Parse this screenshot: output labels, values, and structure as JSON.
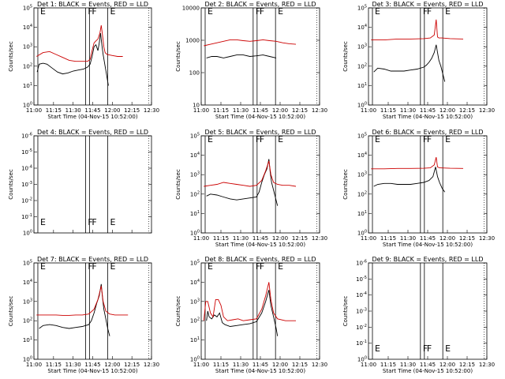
{
  "page": {
    "background": "#ffffff",
    "event_color": "#000000",
    "lld_color": "#cc0000"
  },
  "chart_data": [
    {
      "type": "line",
      "title": "Det 1: BLACK = Events, RED = LLD",
      "xlabel": "Start Time (04-Nov-15 10:52:00)",
      "ylabel": "Counts/sec",
      "x_tick_labels": [
        "11:00",
        "11:15",
        "11:30",
        "11:45",
        "12:00",
        "12:15",
        "12:30"
      ],
      "xlim_min_after_start": [
        8,
        98
      ],
      "y_scale": "log",
      "y_tick_labels": [
        "10^0",
        "10^1",
        "10^2",
        "10^3",
        "10^4",
        "10^5"
      ],
      "ylim_log10": [
        0,
        5
      ],
      "interval_lines_min": [
        11,
        47.5,
        50.5,
        64.5
      ],
      "end_line_min": 96,
      "markers": [
        "E",
        "F",
        "F",
        "E"
      ],
      "series": [
        {
          "name": "Events",
          "color": "#000000",
          "x_min": [
            10.5,
            12,
            15,
            18,
            22,
            26,
            30,
            34,
            38,
            42,
            46,
            49,
            51,
            52.5,
            54,
            55.5,
            57,
            58,
            59,
            60,
            61,
            62.5,
            63.5,
            64,
            65
          ],
          "log10_y": [
            1.7,
            2.1,
            2.15,
            2.1,
            1.9,
            1.7,
            1.6,
            1.65,
            1.75,
            1.8,
            1.85,
            1.95,
            2.1,
            2.5,
            3.0,
            3.1,
            2.8,
            3.2,
            3.7,
            3.1,
            2.6,
            2.0,
            1.6,
            1.4,
            1.0
          ]
        },
        {
          "name": "LLD",
          "color": "#cc0000",
          "x_min": [
            10,
            15,
            20,
            25,
            30,
            35,
            40,
            45,
            49,
            51,
            52.5,
            54,
            55.5,
            57,
            58.5,
            59.5,
            60.5,
            61.5,
            62.5,
            64,
            68,
            72,
            76
          ],
          "log10_y": [
            2.5,
            2.7,
            2.75,
            2.6,
            2.45,
            2.3,
            2.25,
            2.25,
            2.25,
            2.35,
            2.8,
            3.2,
            3.3,
            3.4,
            3.7,
            4.1,
            3.6,
            3.0,
            2.7,
            2.6,
            2.55,
            2.5,
            2.5
          ]
        }
      ]
    },
    {
      "type": "line",
      "title": "Det 2: BLACK = Events, RED = LLD",
      "xlabel": "Start Time (04-Nov-15 10:52:00)",
      "ylabel": "Counts/sec",
      "x_tick_labels": [
        "11:00",
        "11:15",
        "11:30",
        "11:45",
        "12:00",
        "12:15",
        "12:30"
      ],
      "xlim_min_after_start": [
        8,
        98
      ],
      "y_scale": "log",
      "y_tick_labels": [
        "10",
        "100",
        "1000",
        "10000"
      ],
      "ylim_log10": [
        1,
        4.2
      ],
      "interval_lines_min": [
        11,
        47.5,
        50.5,
        64.5
      ],
      "end_line_min": 96,
      "markers": [
        "E",
        "F",
        "F",
        "E"
      ],
      "series": [
        {
          "name": "Events",
          "color": "#000000",
          "x_min": [
            12,
            16,
            20,
            25,
            30,
            35,
            40,
            45,
            50,
            55,
            60,
            65
          ],
          "log10_y": [
            2.55,
            2.6,
            2.6,
            2.55,
            2.6,
            2.65,
            2.65,
            2.6,
            2.62,
            2.65,
            2.6,
            2.55
          ]
        },
        {
          "name": "LLD",
          "color": "#cc0000",
          "x_min": [
            10,
            15,
            20,
            25,
            30,
            35,
            40,
            45,
            50,
            55,
            60,
            65,
            70,
            75,
            80
          ],
          "log10_y": [
            2.95,
            3.0,
            3.05,
            3.1,
            3.15,
            3.15,
            3.12,
            3.1,
            3.12,
            3.15,
            3.12,
            3.1,
            3.05,
            3.02,
            3.0
          ]
        }
      ]
    },
    {
      "type": "line",
      "title": "Det 3: BLACK = Events, RED = LLD",
      "xlabel": "Start Time (04-Nov-15 10:52:00)",
      "ylabel": "Counts/sec",
      "x_tick_labels": [
        "11:00",
        "11:15",
        "11:30",
        "11:45",
        "12:00",
        "12:15",
        "12:30"
      ],
      "xlim_min_after_start": [
        8,
        98
      ],
      "y_scale": "log",
      "y_tick_labels": [
        "10^0",
        "10^1",
        "10^2",
        "10^3",
        "10^4",
        "10^5"
      ],
      "ylim_log10": [
        0,
        5
      ],
      "interval_lines_min": [
        11,
        47.5,
        50.5,
        64.5
      ],
      "end_line_min": 96,
      "markers": [
        "E",
        "F",
        "F",
        "E"
      ],
      "series": [
        {
          "name": "Events",
          "color": "#000000",
          "x_min": [
            12,
            15,
            20,
            25,
            30,
            35,
            40,
            45,
            50,
            52,
            54,
            56,
            58,
            59.5,
            60.5,
            61.5,
            63,
            64.5,
            66
          ],
          "log10_y": [
            1.7,
            1.9,
            1.85,
            1.75,
            1.75,
            1.75,
            1.8,
            1.85,
            1.95,
            2.05,
            2.2,
            2.4,
            2.7,
            3.1,
            2.7,
            2.3,
            2.0,
            1.6,
            1.2
          ]
        },
        {
          "name": "LLD",
          "color": "#cc0000",
          "x_min": [
            10,
            20,
            30,
            40,
            50,
            55,
            58,
            59.5,
            60.5,
            61.5,
            64,
            70,
            80
          ],
          "log10_y": [
            3.35,
            3.35,
            3.4,
            3.4,
            3.42,
            3.45,
            3.6,
            4.4,
            3.5,
            3.45,
            3.45,
            3.42,
            3.4
          ]
        }
      ]
    },
    {
      "type": "line",
      "title": "Det 4: BLACK = Events, RED = LLD",
      "xlabel": "",
      "ylabel": "Counts/sec",
      "x_tick_labels": [],
      "xlim_min_after_start": [
        8,
        98
      ],
      "y_scale": "log",
      "y_tick_labels": [
        "10^0",
        "10^-1",
        "10^-2",
        "10^-3",
        "10^-4",
        "10^-5",
        "10^-6"
      ],
      "ylim_log10": [
        -6,
        0
      ],
      "interval_lines_min": [
        11,
        47.5,
        50.5,
        64.5
      ],
      "end_line_min": 96,
      "markers": [
        "E",
        "F",
        "F",
        "E"
      ],
      "series": []
    },
    {
      "type": "line",
      "title": "Det 5: BLACK = Events, RED = LLD",
      "xlabel": "Start Time (04-Nov-15 10:52:00)",
      "ylabel": "Counts/sec",
      "x_tick_labels": [
        "11:00",
        "11:15",
        "11:30",
        "11:45",
        "12:00",
        "12:15",
        "12:30"
      ],
      "xlim_min_after_start": [
        8,
        98
      ],
      "y_scale": "log",
      "y_tick_labels": [
        "10^0",
        "10^1",
        "10^2",
        "10^3",
        "10^4",
        "10^5"
      ],
      "ylim_log10": [
        0,
        5
      ],
      "interval_lines_min": [
        11,
        47.5,
        50.5,
        64.5
      ],
      "end_line_min": 96,
      "markers": [
        "E",
        "F",
        "F",
        "E"
      ],
      "series": [
        {
          "name": "Events",
          "color": "#000000",
          "x_min": [
            12,
            15,
            20,
            25,
            30,
            35,
            40,
            45,
            50,
            52,
            54,
            56,
            58,
            59.5,
            60.5,
            61.5,
            63,
            64.5,
            66
          ],
          "log10_y": [
            1.9,
            2.0,
            1.95,
            1.85,
            1.75,
            1.7,
            1.75,
            1.8,
            1.85,
            2.1,
            2.6,
            3.0,
            3.3,
            3.8,
            3.1,
            2.6,
            2.2,
            1.8,
            1.4
          ]
        },
        {
          "name": "LLD",
          "color": "#cc0000",
          "x_min": [
            10,
            15,
            20,
            25,
            30,
            35,
            40,
            45,
            50,
            54,
            57,
            59.5,
            61,
            63,
            66,
            70,
            75,
            80
          ],
          "log10_y": [
            2.4,
            2.45,
            2.5,
            2.6,
            2.55,
            2.5,
            2.45,
            2.4,
            2.45,
            2.7,
            3.2,
            3.7,
            3.0,
            2.6,
            2.5,
            2.45,
            2.45,
            2.4
          ]
        }
      ]
    },
    {
      "type": "line",
      "title": "Det 6: BLACK = Events, RED = LLD",
      "xlabel": "Start Time (04-Nov-15 10:52:00)",
      "ylabel": "Counts/sec",
      "x_tick_labels": [
        "11:00",
        "11:15",
        "11:30",
        "11:45",
        "12:00",
        "12:15",
        "12:30"
      ],
      "xlim_min_after_start": [
        8,
        98
      ],
      "y_scale": "log",
      "y_tick_labels": [
        "10^0",
        "10^1",
        "10^2",
        "10^3",
        "10^4",
        "10^5"
      ],
      "ylim_log10": [
        0,
        5
      ],
      "interval_lines_min": [
        11,
        47.5,
        50.5,
        64.5
      ],
      "end_line_min": 96,
      "markers": [
        "E",
        "F",
        "F",
        "E"
      ],
      "series": [
        {
          "name": "Events",
          "color": "#000000",
          "x_min": [
            12,
            15,
            20,
            25,
            30,
            35,
            40,
            45,
            50,
            54,
            57,
            59,
            60.5,
            62,
            64,
            66
          ],
          "log10_y": [
            2.4,
            2.5,
            2.55,
            2.55,
            2.5,
            2.5,
            2.5,
            2.55,
            2.6,
            2.7,
            2.9,
            3.4,
            2.9,
            2.6,
            2.3,
            2.1
          ]
        },
        {
          "name": "LLD",
          "color": "#cc0000",
          "x_min": [
            10,
            20,
            30,
            40,
            50,
            55,
            58,
            59.5,
            60.5,
            62,
            70,
            80
          ],
          "log10_y": [
            3.3,
            3.3,
            3.32,
            3.32,
            3.33,
            3.35,
            3.5,
            3.9,
            3.4,
            3.35,
            3.33,
            3.32
          ]
        }
      ]
    },
    {
      "type": "line",
      "title": "Det 7: BLACK = Events, RED = LLD",
      "xlabel": "Start Time (04-Nov-15 10:52:00)",
      "ylabel": "Counts/sec",
      "x_tick_labels": [
        "11:00",
        "11:15",
        "11:30",
        "11:45",
        "12:00",
        "12:15",
        "12:30"
      ],
      "xlim_min_after_start": [
        8,
        98
      ],
      "y_scale": "log",
      "y_tick_labels": [
        "10^0",
        "10^1",
        "10^2",
        "10^3",
        "10^4",
        "10^5"
      ],
      "ylim_log10": [
        0,
        5
      ],
      "interval_lines_min": [
        11,
        47.5,
        50.5,
        64.5
      ],
      "end_line_min": 96,
      "markers": [
        "E",
        "F",
        "F",
        "E"
      ],
      "series": [
        {
          "name": "Events",
          "color": "#000000",
          "x_min": [
            12,
            15,
            20,
            25,
            30,
            35,
            40,
            45,
            50,
            52,
            54,
            56,
            58,
            59.5,
            60.5,
            61.5,
            63,
            64.5,
            66
          ],
          "log10_y": [
            1.6,
            1.75,
            1.8,
            1.75,
            1.65,
            1.6,
            1.65,
            1.7,
            1.8,
            2.0,
            2.4,
            2.9,
            3.3,
            3.9,
            3.2,
            2.6,
            2.1,
            1.6,
            1.2
          ]
        },
        {
          "name": "LLD",
          "color": "#cc0000",
          "x_min": [
            10,
            15,
            20,
            25,
            30,
            35,
            40,
            45,
            50,
            54,
            57,
            59.5,
            61,
            63,
            66,
            70,
            75,
            80
          ],
          "log10_y": [
            2.3,
            2.3,
            2.3,
            2.3,
            2.28,
            2.28,
            2.3,
            2.3,
            2.35,
            2.6,
            3.1,
            3.8,
            3.0,
            2.5,
            2.35,
            2.3,
            2.3,
            2.3
          ]
        }
      ]
    },
    {
      "type": "line",
      "title": "Det 8: BLACK = Events, RED = LLD",
      "xlabel": "Start Time (04-Nov-15 10:52:00)",
      "ylabel": "Counts/sec",
      "x_tick_labels": [
        "11:00",
        "11:15",
        "11:30",
        "11:45",
        "12:00",
        "12:15",
        "12:30"
      ],
      "xlim_min_after_start": [
        8,
        98
      ],
      "y_scale": "log",
      "y_tick_labels": [
        "10^0",
        "10^1",
        "10^2",
        "10^3",
        "10^4",
        "10^5"
      ],
      "ylim_log10": [
        0,
        5
      ],
      "interval_lines_min": [
        11,
        47.5,
        50.5,
        64.5
      ],
      "end_line_min": 96,
      "markers": [
        "E",
        "F",
        "F",
        "E"
      ],
      "series": [
        {
          "name": "Events",
          "color": "#000000",
          "x_min": [
            12,
            13,
            14,
            16,
            18,
            20,
            22,
            24,
            26,
            30,
            35,
            40,
            45,
            50,
            54,
            57,
            59.5,
            61,
            63,
            65,
            66
          ],
          "log10_y": [
            2.0,
            2.5,
            2.2,
            2.1,
            2.3,
            2.2,
            2.4,
            1.9,
            1.8,
            1.7,
            1.75,
            1.8,
            1.85,
            1.95,
            2.4,
            3.0,
            3.6,
            2.8,
            2.2,
            1.6,
            1.2
          ]
        },
        {
          "name": "LLD",
          "color": "#cc0000",
          "x_min": [
            10,
            11.5,
            13,
            15,
            17,
            19,
            21,
            23,
            25,
            28,
            32,
            36,
            40,
            45,
            50,
            54,
            57,
            59.5,
            61,
            63,
            66,
            72,
            80
          ],
          "log10_y": [
            2.0,
            3.0,
            3.0,
            2.4,
            2.2,
            3.1,
            3.1,
            2.8,
            2.2,
            2.0,
            2.05,
            2.1,
            2.0,
            2.05,
            2.1,
            2.6,
            3.3,
            4.0,
            3.1,
            2.4,
            2.1,
            2.0,
            2.0
          ]
        }
      ]
    },
    {
      "type": "line",
      "title": "Det 9: BLACK = Events, RED = LLD",
      "xlabel": "Start Time (04-Nov-15 10:52:00)",
      "ylabel": "Counts/sec",
      "x_tick_labels": [
        "11:00",
        "11:15",
        "11:30",
        "11:45",
        "12:00",
        "12:15",
        "12:30"
      ],
      "xlim_min_after_start": [
        8,
        98
      ],
      "y_scale": "log",
      "y_tick_labels": [
        "10^0",
        "10^-1",
        "10^-2",
        "10^-3",
        "10^-4",
        "10^-5",
        "10^-6"
      ],
      "ylim_log10": [
        -6,
        0
      ],
      "interval_lines_min": [
        11,
        47.5,
        50.5,
        64.5
      ],
      "end_line_min": 96,
      "markers": [
        "E",
        "F",
        "F",
        "E"
      ],
      "series": []
    }
  ]
}
